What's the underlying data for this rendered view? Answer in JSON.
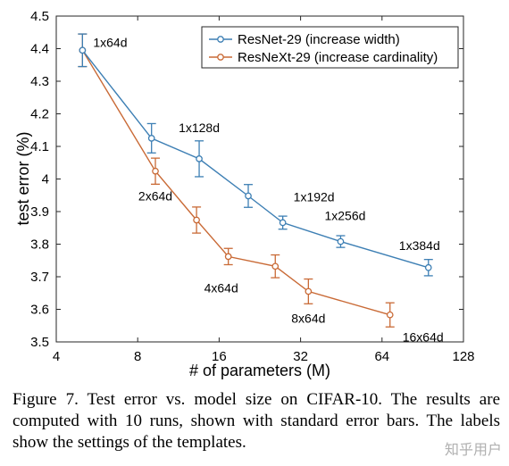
{
  "chart_data": {
    "type": "line",
    "xlabel": "# of parameters (M)",
    "ylabel": "test error (%)",
    "xscale": "log2",
    "xlim": [
      4,
      128
    ],
    "ylim": [
      3.5,
      4.5
    ],
    "xticks": [
      4,
      8,
      16,
      32,
      64,
      128
    ],
    "xtick_labels": [
      "4",
      "8",
      "16",
      "32",
      "64",
      "128"
    ],
    "yticks": [
      3.5,
      3.6,
      3.7,
      3.8,
      3.9,
      4.0,
      4.1,
      4.2,
      4.3,
      4.4,
      4.5
    ],
    "ytick_labels": [
      "3.5",
      "3.6",
      "3.7",
      "3.8",
      "3.9",
      "4",
      "4.1",
      "4.2",
      "4.3",
      "4.4",
      "4.5"
    ],
    "grid": false,
    "legend_position": "top-right",
    "series": [
      {
        "name": "ResNet-29 (increase width)",
        "color": "#3d7fb4",
        "points": [
          {
            "x": 5.0,
            "y": 4.395,
            "err": 0.05,
            "label": "1x64d"
          },
          {
            "x": 9.0,
            "y": 4.125,
            "err": 0.045,
            "label": ""
          },
          {
            "x": 13.5,
            "y": 4.062,
            "err": 0.055,
            "label": "1x128d"
          },
          {
            "x": 20.5,
            "y": 3.948,
            "err": 0.035,
            "label": ""
          },
          {
            "x": 27.5,
            "y": 3.866,
            "err": 0.02,
            "label": "1x192d"
          },
          {
            "x": 45.0,
            "y": 3.808,
            "err": 0.018,
            "label": "1x256d"
          },
          {
            "x": 95.0,
            "y": 3.728,
            "err": 0.025,
            "label": "1x384d"
          }
        ]
      },
      {
        "name": "ResNeXt-29 (increase cardinality)",
        "color": "#c96a36",
        "points": [
          {
            "x": 5.0,
            "y": 4.395,
            "err": 0.05,
            "label": ""
          },
          {
            "x": 9.3,
            "y": 4.024,
            "err": 0.04,
            "label": "2x64d"
          },
          {
            "x": 13.2,
            "y": 3.874,
            "err": 0.04,
            "label": ""
          },
          {
            "x": 17.3,
            "y": 3.762,
            "err": 0.025,
            "label": "4x64d"
          },
          {
            "x": 25.8,
            "y": 3.732,
            "err": 0.035,
            "label": ""
          },
          {
            "x": 34.2,
            "y": 3.655,
            "err": 0.038,
            "label": "8x64d"
          },
          {
            "x": 68.5,
            "y": 3.583,
            "err": 0.037,
            "label": "16x64d"
          }
        ]
      }
    ]
  },
  "caption": "Figure 7. Test error vs. model size on CIFAR-10. The results are computed with 10 runs, shown with standard error bars. The labels show the settings of the templates.",
  "watermark": "知乎用户"
}
